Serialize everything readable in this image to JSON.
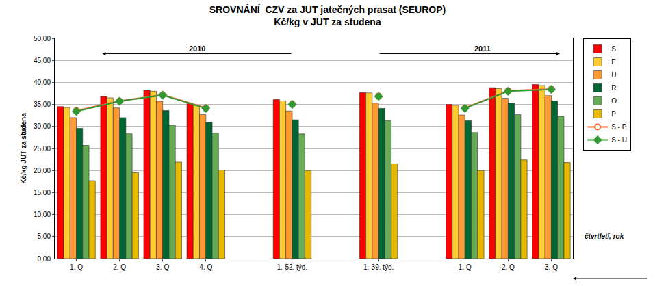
{
  "chart_data": {
    "type": "bar",
    "title": "SROVNÁNÍ  CZV za JUT jatečných prasat (SEUROP)",
    "subtitle": "Kč/kg v JUT za studena",
    "ylabel": "Kč/kg JUT za studena",
    "annotations": [
      "2010",
      "2011",
      "čtvrtletí, rok"
    ],
    "categories": [
      "1. Q",
      "2. Q",
      "3. Q",
      "4. Q",
      null,
      "1.-52. týd.",
      null,
      "1.-39. týd.",
      null,
      "1. Q",
      "2. Q",
      "3. Q"
    ],
    "series": [
      {
        "name": "S",
        "type": "bar",
        "color": "#ff0000",
        "values": [
          34.5,
          36.8,
          38.2,
          35.2,
          null,
          36.1,
          null,
          37.7,
          null,
          35.0,
          38.8,
          39.5
        ]
      },
      {
        "name": "E",
        "type": "bar",
        "color": "#ffcc33",
        "values": [
          34.3,
          36.5,
          38.0,
          34.8,
          null,
          35.8,
          null,
          37.6,
          null,
          34.8,
          38.6,
          39.3
        ]
      },
      {
        "name": "U",
        "type": "bar",
        "color": "#ff9933",
        "values": [
          32.0,
          34.2,
          35.7,
          32.7,
          null,
          33.5,
          null,
          35.3,
          null,
          32.6,
          36.4,
          37.0
        ]
      },
      {
        "name": "R",
        "type": "bar",
        "color": "#006633",
        "values": [
          29.6,
          32.0,
          33.6,
          30.9,
          null,
          31.5,
          null,
          34.1,
          null,
          31.3,
          35.3,
          35.8
        ]
      },
      {
        "name": "O",
        "type": "bar",
        "color": "#66aa55",
        "values": [
          25.7,
          28.3,
          30.3,
          28.5,
          null,
          28.3,
          null,
          31.3,
          null,
          28.6,
          32.7,
          32.3
        ]
      },
      {
        "name": "P",
        "type": "bar",
        "color": "#e6b800",
        "values": [
          17.7,
          19.5,
          21.9,
          20.1,
          null,
          20.0,
          null,
          21.5,
          null,
          20.0,
          22.4,
          21.8
        ]
      },
      {
        "name": "S - P",
        "type": "line",
        "color": "#ff6633",
        "marker": "circle",
        "line_style": "solid",
        "values": [
          33.6,
          35.8,
          37.2,
          34.2,
          null,
          35.1,
          null,
          36.9,
          null,
          34.2,
          38.1,
          38.5
        ]
      },
      {
        "name": "S - U",
        "type": "line",
        "color": "#339933",
        "marker": "diamond",
        "line_style": "solid",
        "values": [
          33.4,
          35.7,
          37.1,
          34.1,
          null,
          35.0,
          null,
          36.8,
          null,
          34.1,
          38.0,
          38.4
        ]
      }
    ],
    "ylim": [
      0,
      50
    ],
    "yticks": [
      {
        "value": 0,
        "label": "0,00"
      },
      {
        "value": 5,
        "label": "5,00"
      },
      {
        "value": 10,
        "label": "10,00"
      },
      {
        "value": 15,
        "label": "15,00"
      },
      {
        "value": 20,
        "label": "20,00"
      },
      {
        "value": 25,
        "label": "25,00"
      },
      {
        "value": 30,
        "label": "30,00"
      },
      {
        "value": 35,
        "label": "35,00"
      },
      {
        "value": 40,
        "label": "40,00"
      },
      {
        "value": 45,
        "label": "45,00"
      },
      {
        "value": 50,
        "label": "50,00"
      }
    ],
    "grid": true,
    "legend": "right"
  }
}
